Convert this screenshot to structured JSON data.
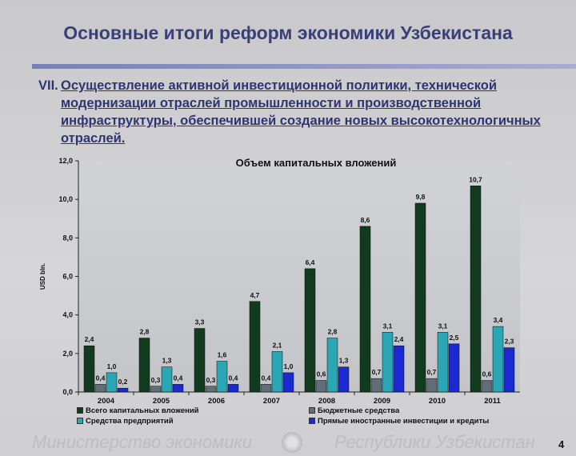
{
  "slide": {
    "title": "Основные итоги реформ экономики Узбекистана",
    "section_number": "VII.",
    "section_text": "Осуществление активной инвестиционной политики, технической модернизации отраслей промышленности и производственной инфраструктуры, обеспечившей создание новых высокотехнологичных отраслей.",
    "footer_left": "Министерство экономики",
    "footer_right": "Республики Узбекистан",
    "page_number": "4"
  },
  "chart_data": {
    "type": "bar",
    "title": "Объем капитальных вложений",
    "ylabel": "USD bln.",
    "xlabel": "",
    "ylim": [
      0,
      12
    ],
    "yticks": [
      "0,0",
      "2,0",
      "4,0",
      "6,0",
      "8,0",
      "10,0",
      "12,0"
    ],
    "categories": [
      "2004",
      "2005",
      "2006",
      "2007",
      "2008",
      "2009",
      "2010",
      "2011"
    ],
    "legend_position": "bottom",
    "series": [
      {
        "name": "Всего капитальных вложений",
        "color": "#123a1e",
        "values": [
          2.4,
          2.8,
          3.3,
          4.7,
          6.4,
          8.6,
          9.8,
          10.7
        ],
        "labels": [
          "2,4",
          "2,8",
          "3,3",
          "4,7",
          "6,4",
          "8,6",
          "9,8",
          "10,7"
        ]
      },
      {
        "name": "Бюджетные средства",
        "color": "#5f6e78",
        "values": [
          0.4,
          0.3,
          0.3,
          0.4,
          0.6,
          0.7,
          0.7,
          0.6
        ],
        "labels": [
          "0,4",
          "0,3",
          "0,3",
          "0,4",
          "0,6",
          "0,7",
          "0,7",
          "0,6"
        ]
      },
      {
        "name": "Средства предприятий",
        "color": "#2aa6b4",
        "values": [
          1.0,
          1.3,
          1.6,
          2.1,
          2.8,
          3.1,
          3.1,
          3.4
        ],
        "labels": [
          "1,0",
          "1,3",
          "1,6",
          "2,1",
          "2,8",
          "3,1",
          "3,1",
          "3,4"
        ]
      },
      {
        "name": "Прямые иностранные инвестиции и кредиты",
        "color": "#1a2ad0",
        "values": [
          0.2,
          0.4,
          0.4,
          1.0,
          1.3,
          2.4,
          2.5,
          2.3
        ],
        "labels": [
          "0,2",
          "0,4",
          "0,4",
          "1,0",
          "1,3",
          "2,4",
          "2,5",
          "2,3"
        ]
      }
    ]
  }
}
